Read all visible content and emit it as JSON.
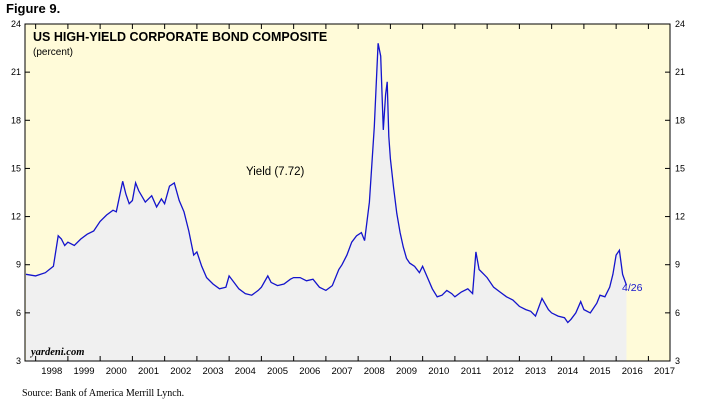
{
  "figure_label": "Figure 9.",
  "source": "Source: Bank of America Merrill Lynch.",
  "watermark": "yardeni.com",
  "colors": {
    "plot_bg": "#fffbd9",
    "fill": "#f0f0f0",
    "line": "#1414cc",
    "annotation": "#1414cc"
  },
  "chart_data": {
    "type": "line",
    "title": "US HIGH-YIELD CORPORATE BOND COMPOSITE",
    "subtitle": "(percent)",
    "xlabel": "",
    "ylabel": "",
    "xlim": [
      1997.67,
      2017.67
    ],
    "ylim": [
      3,
      24
    ],
    "y_ticks": [
      3,
      6,
      9,
      12,
      15,
      18,
      21,
      24
    ],
    "x_ticks": [
      "1998",
      "1999",
      "2000",
      "2001",
      "2002",
      "2003",
      "2004",
      "2005",
      "2006",
      "2007",
      "2008",
      "2009",
      "2010",
      "2011",
      "2012",
      "2013",
      "2014",
      "2015",
      "2016",
      "2017"
    ],
    "grid": false,
    "series": [
      {
        "name": "Yield",
        "annotation": "Yield (7.72)",
        "end_label": "4/26",
        "x": [
          1997.7,
          1998.0,
          1998.3,
          1998.55,
          1998.7,
          1998.8,
          1998.9,
          1999.0,
          1999.2,
          1999.4,
          1999.6,
          1999.8,
          2000.0,
          2000.2,
          2000.4,
          2000.5,
          2000.7,
          2000.8,
          2000.9,
          2001.0,
          2001.1,
          2001.2,
          2001.4,
          2001.6,
          2001.75,
          2001.9,
          2002.0,
          2002.15,
          2002.3,
          2002.45,
          2002.6,
          2002.75,
          2002.9,
          2003.0,
          2003.15,
          2003.3,
          2003.5,
          2003.7,
          2003.9,
          2004.0,
          2004.15,
          2004.3,
          2004.5,
          2004.7,
          2004.9,
          2005.0,
          2005.2,
          2005.3,
          2005.5,
          2005.7,
          2005.9,
          2006.0,
          2006.2,
          2006.4,
          2006.6,
          2006.8,
          2007.0,
          2007.2,
          2007.4,
          2007.5,
          2007.65,
          2007.8,
          2007.95,
          2008.1,
          2008.2,
          2008.35,
          2008.5,
          2008.55,
          2008.62,
          2008.7,
          2008.78,
          2008.85,
          2008.9,
          2008.95,
          2009.0,
          2009.1,
          2009.2,
          2009.3,
          2009.4,
          2009.5,
          2009.6,
          2009.75,
          2009.9,
          2010.0,
          2010.15,
          2010.3,
          2010.45,
          2010.6,
          2010.75,
          2010.9,
          2011.0,
          2011.2,
          2011.4,
          2011.55,
          2011.65,
          2011.75,
          2011.9,
          2012.0,
          2012.2,
          2012.4,
          2012.6,
          2012.8,
          2013.0,
          2013.2,
          2013.35,
          2013.5,
          2013.7,
          2013.9,
          2014.0,
          2014.2,
          2014.4,
          2014.5,
          2014.6,
          2014.75,
          2014.9,
          2015.0,
          2015.2,
          2015.4,
          2015.5,
          2015.65,
          2015.8,
          2015.9,
          2016.0,
          2016.1,
          2016.2,
          2016.32
        ],
        "y": [
          8.4,
          8.3,
          8.5,
          8.9,
          10.8,
          10.6,
          10.2,
          10.4,
          10.2,
          10.6,
          10.9,
          11.1,
          11.7,
          12.1,
          12.4,
          12.3,
          14.2,
          13.4,
          12.8,
          13.0,
          14.1,
          13.6,
          12.9,
          13.3,
          12.6,
          13.1,
          12.8,
          13.9,
          14.1,
          13.0,
          12.3,
          11.1,
          9.6,
          9.8,
          8.9,
          8.2,
          7.8,
          7.5,
          7.6,
          8.3,
          7.9,
          7.5,
          7.2,
          7.1,
          7.4,
          7.6,
          8.3,
          7.9,
          7.7,
          7.8,
          8.1,
          8.2,
          8.2,
          8.0,
          8.1,
          7.6,
          7.4,
          7.7,
          8.7,
          9.0,
          9.6,
          10.4,
          10.8,
          11.0,
          10.5,
          12.9,
          17.6,
          19.8,
          22.8,
          22.0,
          17.4,
          19.6,
          20.4,
          17.0,
          15.6,
          13.8,
          12.2,
          11.0,
          10.1,
          9.4,
          9.1,
          8.9,
          8.5,
          8.9,
          8.2,
          7.5,
          7.0,
          7.1,
          7.4,
          7.2,
          7.0,
          7.3,
          7.5,
          7.2,
          9.8,
          8.7,
          8.4,
          8.2,
          7.6,
          7.3,
          7.0,
          6.8,
          6.4,
          6.2,
          6.1,
          5.8,
          6.9,
          6.2,
          6.0,
          5.8,
          5.7,
          5.4,
          5.6,
          6.0,
          6.7,
          6.2,
          6.0,
          6.6,
          7.1,
          7.0,
          7.6,
          8.4,
          9.6,
          9.9,
          8.4,
          7.72
        ]
      }
    ]
  }
}
